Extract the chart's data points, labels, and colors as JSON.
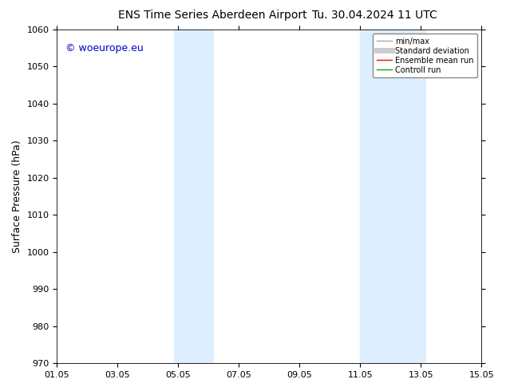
{
  "title_left": "ENS Time Series Aberdeen Airport",
  "title_right": "Tu. 30.04.2024 11 UTC",
  "ylabel": "Surface Pressure (hPa)",
  "ylim": [
    970,
    1060
  ],
  "yticks": [
    970,
    980,
    990,
    1000,
    1010,
    1020,
    1030,
    1040,
    1050,
    1060
  ],
  "xlim": [
    0,
    14
  ],
  "xtick_labels": [
    "01.05",
    "03.05",
    "05.05",
    "07.05",
    "09.05",
    "11.05",
    "13.05",
    "15.05"
  ],
  "xtick_positions": [
    0,
    2,
    4,
    6,
    8,
    10,
    12,
    14
  ],
  "shaded_bands": [
    {
      "x_start": 3.85,
      "x_end": 5.15,
      "color": "#ddeeff"
    },
    {
      "x_start": 10.0,
      "x_end": 12.15,
      "color": "#ddeeff"
    }
  ],
  "watermark": "© woeurope.eu",
  "watermark_color": "#0000cc",
  "legend_items": [
    {
      "label": "min/max",
      "color": "#aaaaaa",
      "lw": 1.0,
      "linestyle": "-"
    },
    {
      "label": "Standard deviation",
      "color": "#cccccc",
      "lw": 5,
      "linestyle": "-"
    },
    {
      "label": "Ensemble mean run",
      "color": "#ff0000",
      "lw": 1.0,
      "linestyle": "-"
    },
    {
      "label": "Controll run",
      "color": "#00aa00",
      "lw": 1.0,
      "linestyle": "-"
    }
  ],
  "background_color": "#ffffff",
  "title_fontsize": 10,
  "ylabel_fontsize": 9,
  "tick_fontsize": 8,
  "watermark_fontsize": 9,
  "legend_fontsize": 7
}
